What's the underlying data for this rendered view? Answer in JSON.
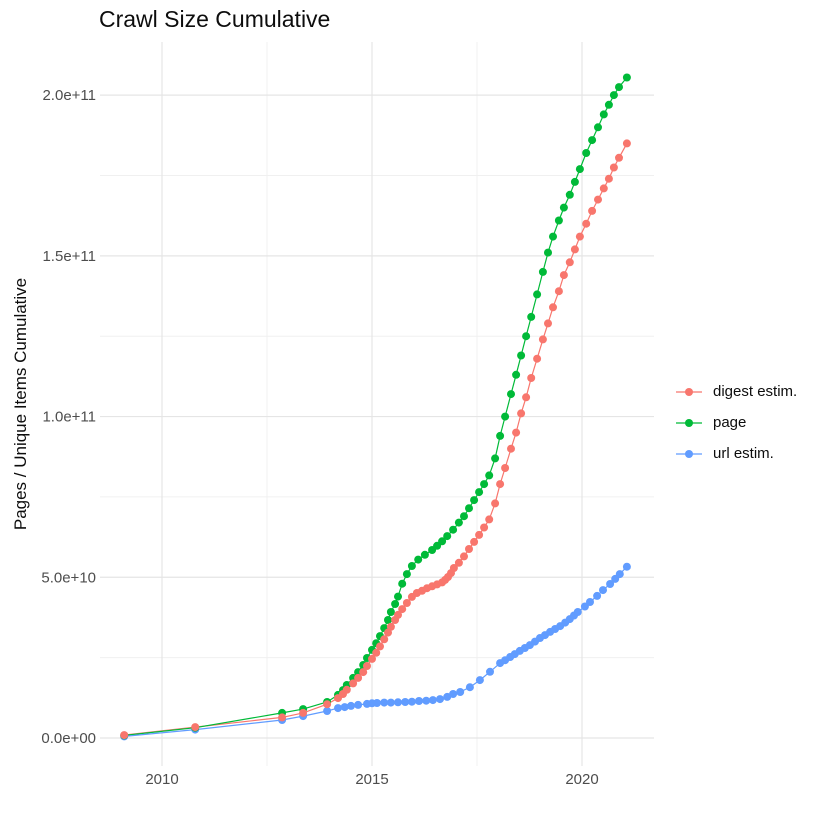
{
  "chart_data": {
    "type": "line",
    "title": "Crawl Size Cumulative",
    "xlabel": "",
    "ylabel": "Pages / Unique Items Cumulative",
    "xlim": [
      2008.5,
      2021.7
    ],
    "ylim_billions": [
      0,
      216
    ],
    "y_unit": "billions (1e9) of pages / unique items",
    "grid": "on",
    "legend_position": "right",
    "x_ticks": [
      {
        "v": 2010,
        "label": "2010"
      },
      {
        "v": 2015,
        "label": "2015"
      },
      {
        "v": 2020,
        "label": "2020"
      }
    ],
    "x_minor_ticks": [
      2012.5,
      2017.5
    ],
    "y_ticks": [
      {
        "v": 0,
        "label": "0.0e+00"
      },
      {
        "v": 50,
        "label": "5.0e+10"
      },
      {
        "v": 100,
        "label": "1.0e+11"
      },
      {
        "v": 150,
        "label": "1.5e+11"
      },
      {
        "v": 200,
        "label": "2.0e+11"
      }
    ],
    "y_minor_ticks": [
      25,
      75,
      125,
      175
    ],
    "series": [
      {
        "name": "digest estim.",
        "color": "#F8766D",
        "x": [
          2009.1,
          2010.79,
          2012.86,
          2013.36,
          2013.93,
          2014.19,
          2014.31,
          2014.4,
          2014.55,
          2014.67,
          2014.79,
          2014.88,
          2015.0,
          2015.1,
          2015.19,
          2015.29,
          2015.38,
          2015.45,
          2015.55,
          2015.62,
          2015.72,
          2015.83,
          2015.95,
          2016.07,
          2016.19,
          2016.31,
          2016.43,
          2016.55,
          2016.67,
          2016.74,
          2016.81,
          2016.88,
          2016.95,
          2017.07,
          2017.19,
          2017.31,
          2017.43,
          2017.55,
          2017.67,
          2017.79,
          2017.93,
          2018.05,
          2018.17,
          2018.31,
          2018.43,
          2018.55,
          2018.67,
          2018.79,
          2018.93,
          2019.07,
          2019.19,
          2019.31,
          2019.45,
          2019.57,
          2019.71,
          2019.83,
          2019.95,
          2020.1,
          2020.24,
          2020.38,
          2020.52,
          2020.64,
          2020.76,
          2020.88,
          2021.07
        ],
        "y": [
          0.9,
          3.4,
          6.4,
          7.8,
          10.5,
          12.4,
          13.7,
          15.0,
          17.0,
          18.7,
          20.5,
          22.4,
          24.6,
          26.5,
          28.5,
          30.7,
          32.8,
          34.6,
          36.7,
          38.3,
          40.1,
          42.0,
          43.9,
          45.1,
          45.8,
          46.6,
          47.2,
          47.8,
          48.4,
          49.2,
          50.1,
          51.3,
          52.9,
          54.5,
          56.5,
          58.8,
          61.0,
          63.2,
          65.5,
          68.0,
          73.0,
          79,
          84,
          90,
          95,
          101,
          106,
          112,
          118,
          124,
          129,
          134,
          139,
          144,
          148,
          152,
          156,
          160,
          164,
          167.5,
          171,
          174,
          177.5,
          180.5,
          185
        ]
      },
      {
        "name": "page",
        "color": "#00BA38",
        "x": [
          2009.1,
          2010.79,
          2012.86,
          2013.36,
          2013.93,
          2014.19,
          2014.31,
          2014.4,
          2014.55,
          2014.67,
          2014.79,
          2014.88,
          2015.0,
          2015.1,
          2015.19,
          2015.29,
          2015.38,
          2015.45,
          2015.55,
          2015.62,
          2015.72,
          2015.83,
          2015.95,
          2016.1,
          2016.26,
          2016.43,
          2016.55,
          2016.67,
          2016.79,
          2016.93,
          2017.07,
          2017.19,
          2017.31,
          2017.43,
          2017.55,
          2017.67,
          2017.79,
          2017.93,
          2018.05,
          2018.17,
          2018.31,
          2018.43,
          2018.55,
          2018.67,
          2018.79,
          2018.93,
          2019.07,
          2019.19,
          2019.31,
          2019.45,
          2019.57,
          2019.71,
          2019.83,
          2019.95,
          2020.1,
          2020.24,
          2020.38,
          2020.52,
          2020.64,
          2020.76,
          2020.88,
          2021.07
        ],
        "y": [
          0.8,
          3.2,
          7.8,
          9.0,
          11.2,
          13.4,
          14.9,
          16.5,
          18.7,
          20.5,
          22.7,
          24.9,
          27.4,
          29.5,
          31.7,
          34.2,
          36.7,
          39.2,
          41.7,
          44.0,
          48.0,
          51.0,
          53.5,
          55.5,
          57.0,
          58.5,
          59.8,
          61.2,
          62.8,
          64.8,
          67.0,
          69.0,
          71.5,
          74.0,
          76.5,
          79.0,
          81.7,
          87.0,
          94,
          100,
          107,
          113,
          119,
          125,
          131,
          138,
          145,
          151,
          156,
          161,
          165,
          169,
          173,
          177,
          182,
          186,
          190,
          194,
          197,
          200,
          202.5,
          205.5
        ]
      },
      {
        "name": "url estim.",
        "color": "#619CFF",
        "x": [
          2009.1,
          2010.79,
          2012.86,
          2013.36,
          2013.93,
          2014.19,
          2014.35,
          2014.5,
          2014.67,
          2014.88,
          2015.0,
          2015.12,
          2015.29,
          2015.45,
          2015.62,
          2015.79,
          2015.95,
          2016.12,
          2016.29,
          2016.45,
          2016.62,
          2016.79,
          2016.93,
          2017.1,
          2017.33,
          2017.57,
          2017.81,
          2018.05,
          2018.17,
          2018.29,
          2018.4,
          2018.52,
          2018.64,
          2018.76,
          2018.88,
          2019.0,
          2019.12,
          2019.24,
          2019.36,
          2019.48,
          2019.6,
          2019.71,
          2019.81,
          2019.9,
          2020.07,
          2020.19,
          2020.36,
          2020.5,
          2020.67,
          2020.79,
          2020.9,
          2021.07
        ],
        "y": [
          0.5,
          2.6,
          5.6,
          6.8,
          8.4,
          9.3,
          9.6,
          10.0,
          10.3,
          10.6,
          10.8,
          10.9,
          11.0,
          11.0,
          11.1,
          11.2,
          11.3,
          11.5,
          11.6,
          11.8,
          12.1,
          12.8,
          13.7,
          14.3,
          15.8,
          18.0,
          20.6,
          23.3,
          24.2,
          25.2,
          26.1,
          27.1,
          28.0,
          28.9,
          30.0,
          31.1,
          32.0,
          33.0,
          33.9,
          34.8,
          35.9,
          37.0,
          38.1,
          39.2,
          40.9,
          42.3,
          44.2,
          46.0,
          47.9,
          49.5,
          51.0,
          53.3
        ]
      }
    ]
  },
  "style": {
    "grid_major_color": "#E5E5E5",
    "grid_minor_color": "#F0F0F0",
    "tick_label_color": "#4D4D4D",
    "text_color": "#0d0d0d",
    "background": "#FFFFFF"
  }
}
